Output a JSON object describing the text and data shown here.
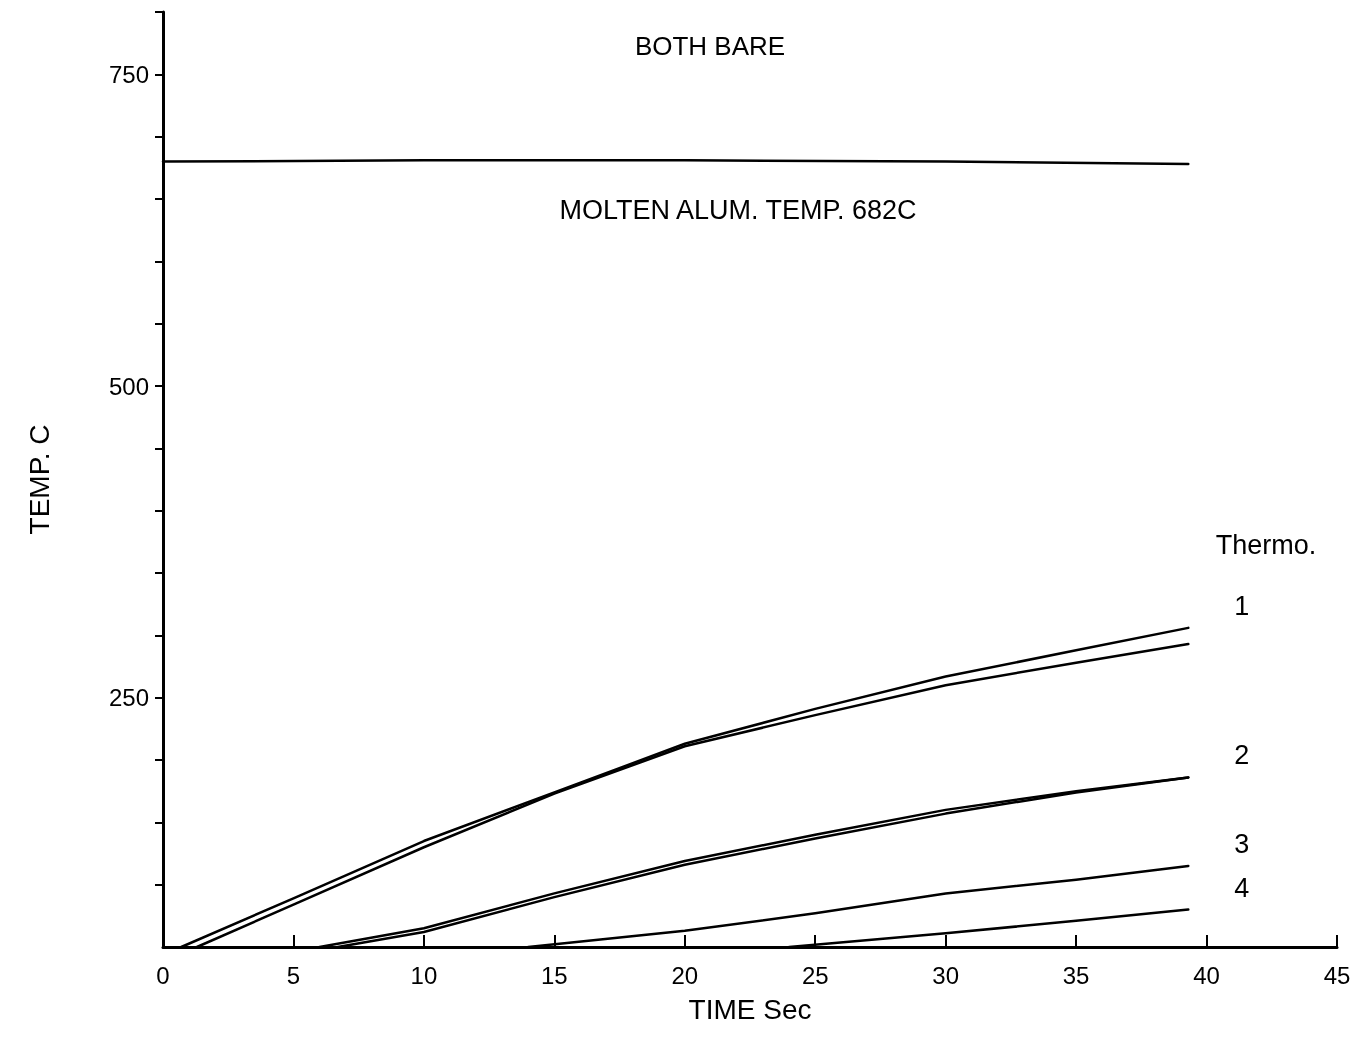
{
  "chart_data": {
    "type": "line",
    "title": "BOTH BARE",
    "xlabel": "TIME Sec",
    "ylabel": "TEMP. C",
    "xlim": [
      0,
      45
    ],
    "xticks": [
      0,
      5,
      10,
      15,
      20,
      25,
      30,
      35,
      40,
      45
    ],
    "ylim": [
      50,
      800
    ],
    "yticks": [
      {
        "value": 100,
        "label": null
      },
      {
        "value": 150,
        "label": null
      },
      {
        "value": 200,
        "label": null
      },
      250,
      {
        "value": 300,
        "label": null
      },
      {
        "value": 350,
        "label": null
      },
      {
        "value": 400,
        "label": null
      },
      {
        "value": 450,
        "label": null
      },
      500,
      {
        "value": 550,
        "label": null
      },
      {
        "value": 600,
        "label": null
      },
      {
        "value": 650,
        "label": null
      },
      {
        "value": 700,
        "label": null
      },
      750,
      {
        "value": 800,
        "label": null
      }
    ],
    "grid": false,
    "marker": "none",
    "line_style": "solid",
    "legend_title": "Thermo.",
    "series": [
      {
        "color": "#000000",
        "x": [
          0,
          10,
          20,
          30,
          39.3
        ],
        "values": [
          680,
          681,
          681,
          680,
          678
        ]
      },
      {
        "name": "1",
        "color": "#000000",
        "x": [
          0.7,
          5,
          10,
          15,
          20,
          25,
          30,
          35,
          39.3
        ],
        "values": [
          50,
          89,
          135,
          174,
          213,
          241,
          267,
          288,
          306
        ]
      },
      {
        "color": "#000000",
        "x": [
          1.3,
          5,
          10,
          15,
          20,
          25,
          30,
          35,
          39.3
        ],
        "values": [
          50,
          84,
          130,
          173,
          211,
          236,
          260,
          278,
          293
        ]
      },
      {
        "name": "2",
        "color": "#000000",
        "x": [
          6,
          10,
          15,
          20,
          25,
          30,
          35,
          39.3
        ],
        "values": [
          50,
          65,
          93,
          119,
          140,
          160,
          175,
          186
        ]
      },
      {
        "color": "#000000",
        "x": [
          6.7,
          10,
          15,
          20,
          25,
          30,
          35,
          39.3
        ],
        "values": [
          50,
          62,
          90,
          116,
          137,
          157,
          174,
          186
        ]
      },
      {
        "name": "3",
        "color": "#000000",
        "x": [
          14,
          20,
          25,
          30,
          35,
          39.3
        ],
        "values": [
          50,
          63,
          77,
          93,
          104,
          115
        ]
      },
      {
        "name": "4",
        "color": "#000000",
        "x": [
          24,
          30,
          35,
          39.3
        ],
        "values": [
          50,
          61,
          71,
          80
        ]
      }
    ],
    "annotations": [
      "MOLTEN ALUM. TEMP. 682C"
    ]
  }
}
